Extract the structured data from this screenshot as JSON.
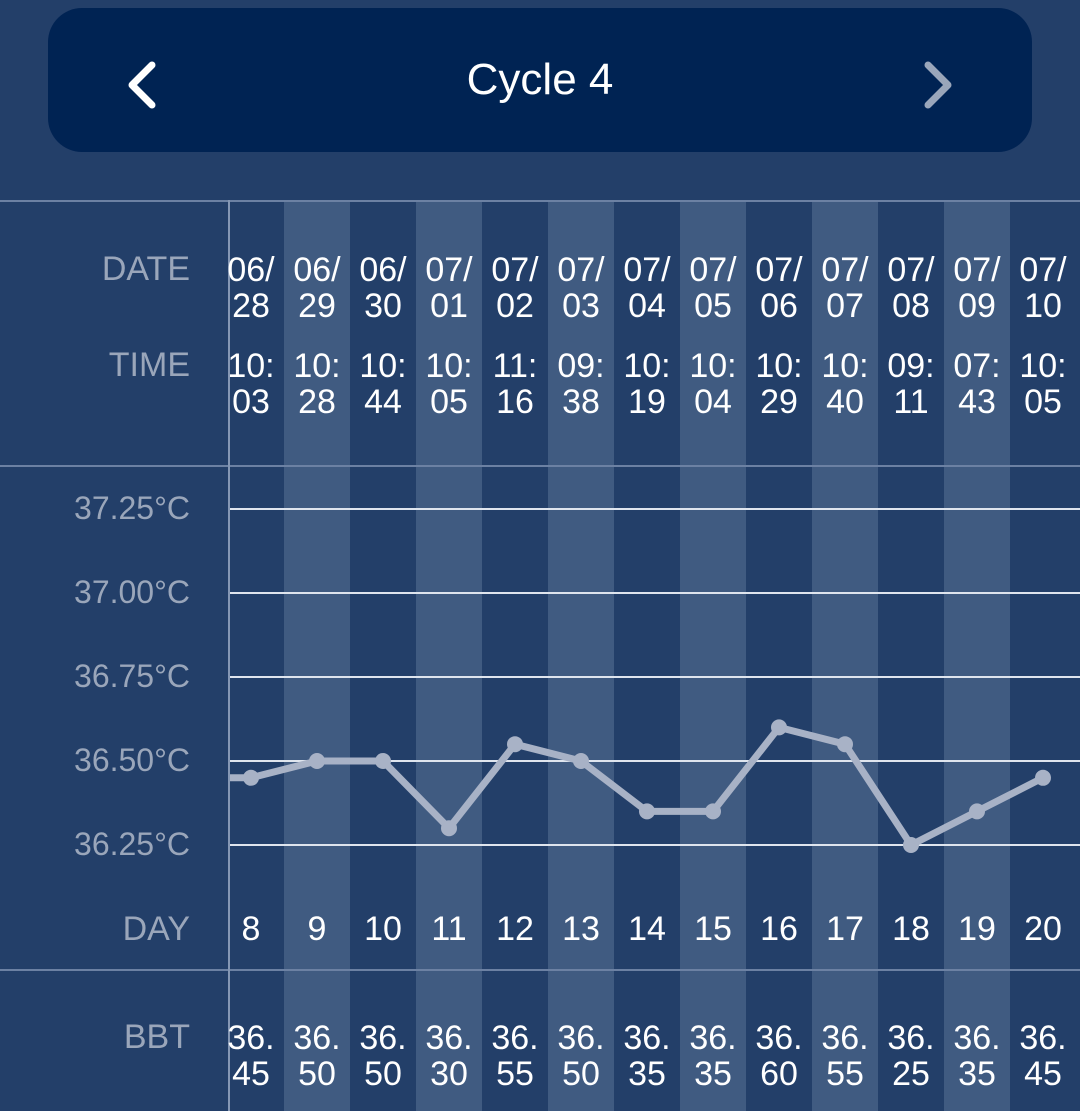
{
  "header": {
    "title": "Cycle 4",
    "prev_icon": "chevron-left-icon",
    "next_icon": "chevron-right-icon"
  },
  "labels": {
    "date": "DATE",
    "time": "TIME",
    "day": "DAY",
    "bbt": "BBT"
  },
  "columns": [
    {
      "date1": "06/",
      "date2": "28",
      "time1": "10:",
      "time2": "03",
      "day": "8",
      "bbt1": "36.",
      "bbt2": "45"
    },
    {
      "date1": "06/",
      "date2": "29",
      "time1": "10:",
      "time2": "28",
      "day": "9",
      "bbt1": "36.",
      "bbt2": "50"
    },
    {
      "date1": "06/",
      "date2": "30",
      "time1": "10:",
      "time2": "44",
      "day": "10",
      "bbt1": "36.",
      "bbt2": "50"
    },
    {
      "date1": "07/",
      "date2": "01",
      "time1": "10:",
      "time2": "05",
      "day": "11",
      "bbt1": "36.",
      "bbt2": "30"
    },
    {
      "date1": "07/",
      "date2": "02",
      "time1": "11:",
      "time2": "16",
      "day": "12",
      "bbt1": "36.",
      "bbt2": "55"
    },
    {
      "date1": "07/",
      "date2": "03",
      "time1": "09:",
      "time2": "38",
      "day": "13",
      "bbt1": "36.",
      "bbt2": "50"
    },
    {
      "date1": "07/",
      "date2": "04",
      "time1": "10:",
      "time2": "19",
      "day": "14",
      "bbt1": "36.",
      "bbt2": "35"
    },
    {
      "date1": "07/",
      "date2": "05",
      "time1": "10:",
      "time2": "04",
      "day": "15",
      "bbt1": "36.",
      "bbt2": "35"
    },
    {
      "date1": "07/",
      "date2": "06",
      "time1": "10:",
      "time2": "29",
      "day": "16",
      "bbt1": "36.",
      "bbt2": "60"
    },
    {
      "date1": "07/",
      "date2": "07",
      "time1": "10:",
      "time2": "40",
      "day": "17",
      "bbt1": "36.",
      "bbt2": "55"
    },
    {
      "date1": "07/",
      "date2": "08",
      "time1": "09:",
      "time2": "11",
      "day": "18",
      "bbt1": "36.",
      "bbt2": "25"
    },
    {
      "date1": "07/",
      "date2": "09",
      "time1": "07:",
      "time2": "43",
      "day": "19",
      "bbt1": "36.",
      "bbt2": "35"
    },
    {
      "date1": "07/",
      "date2": "10",
      "time1": "10:",
      "time2": "05",
      "day": "20",
      "bbt1": "36.",
      "bbt2": "45"
    }
  ],
  "chart_data": {
    "type": "line",
    "x": [
      8,
      9,
      10,
      11,
      12,
      13,
      14,
      15,
      16,
      17,
      18,
      19,
      20
    ],
    "series": [
      {
        "values": [
          36.45,
          36.5,
          36.5,
          36.3,
          36.55,
          36.5,
          36.35,
          36.35,
          36.6,
          36.55,
          36.25,
          36.35,
          36.45
        ]
      }
    ],
    "yticks": [
      "37.25°C",
      "37.00°C",
      "36.75°C",
      "36.50°C",
      "36.25°C"
    ],
    "ytick_values": [
      37.25,
      37.0,
      36.75,
      36.5,
      36.25
    ],
    "ylim": [
      36.25,
      37.25
    ],
    "grid": true,
    "line_color": "#a8b2c6",
    "preceding_value": 36.45
  },
  "colors": {
    "background": "#233f69",
    "stripe": "#405b81",
    "header_bg": "#002353"
  }
}
